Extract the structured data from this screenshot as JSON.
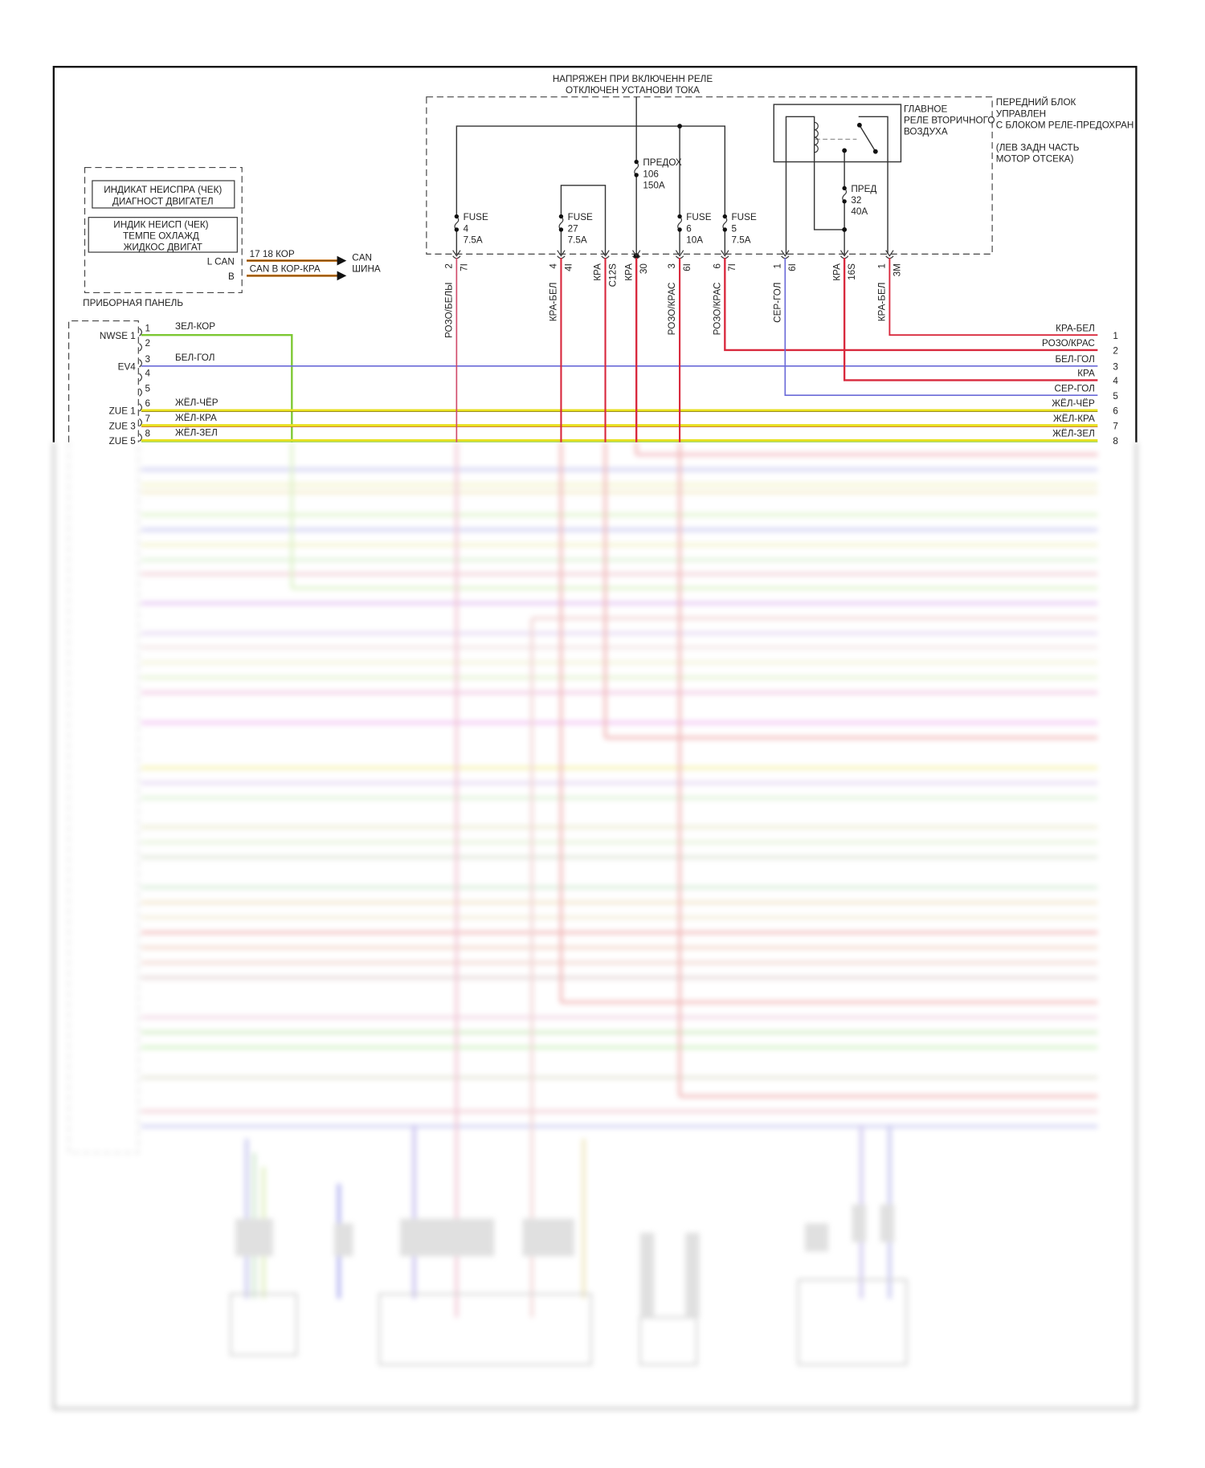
{
  "header": {
    "line1": "НАПРЯЖЕН ПРИ ВКЛЮЧЕНН РЕЛЕ",
    "line2": "ОТКЛЮЧЕН УСТАНОВИ ТОКА"
  },
  "fuse_block": {
    "label": [
      "ПЕРЕДНИЙ БЛОК",
      "УПРАВЛЕН",
      "С БЛОКОМ РЕЛЕ-ПРЕДОХРАН",
      "(ЛЕВ ЗАДН ЧАСТЬ",
      "МОТОР ОТСЕКА)"
    ],
    "relay_label": [
      "ГЛАВНОЕ",
      "РЕЛЕ ВТОРИЧНОГО",
      "ВОЗДУХА"
    ],
    "fuses": [
      {
        "name": "FUSE",
        "num": "4",
        "rating": "7.5A"
      },
      {
        "name": "FUSE",
        "num": "27",
        "rating": "7.5A"
      },
      {
        "name": "ПРЕДОХ",
        "num": "106",
        "rating": "150A"
      },
      {
        "name": "FUSE",
        "num": "6",
        "rating": "10A"
      },
      {
        "name": "FUSE",
        "num": "5",
        "rating": "7.5A"
      },
      {
        "name": "ПРЕД",
        "num": "32",
        "rating": "40A"
      }
    ],
    "pins": [
      {
        "a": "2",
        "b": "7I",
        "wire": "РОЗО/БЕЛЫ"
      },
      {
        "a": "4",
        "b": "4I",
        "wire": "КРА-БЕЛ"
      },
      {
        "a": "КРА",
        "b": "C12S",
        "wire": ""
      },
      {
        "a": "КРА",
        "b": "30",
        "wire": ""
      },
      {
        "a": "3",
        "b": "6I",
        "wire": "РОЗО/КРАС"
      },
      {
        "a": "6",
        "b": "7I",
        "wire": "РОЗО/КРАС"
      },
      {
        "a": "1",
        "b": "6I",
        "wire": "СЕР-ГОЛ"
      },
      {
        "a": "КРА",
        "b": "16S",
        "wire": ""
      },
      {
        "a": "1",
        "b": "3M",
        "wire": "КРА-БЕЛ"
      }
    ]
  },
  "instrument_panel": {
    "title": "ПРИБОРНАЯ ПАНЕЛЬ",
    "box1": [
      "ИНДИКАТ НЕИСПРА (ЧЕК)",
      "ДИАГНОСТ ДВИГАТЕЛ"
    ],
    "box2": [
      "ИНДИК НЕИСП (ЧЕК)",
      "ТЕМПЕ ОХЛАЖД",
      "ЖИДКОС ДВИГАТ"
    ],
    "lcan": "L CAN",
    "b": "B",
    "wire1": "17 18   КОР",
    "wire2": "CAN В КОР-КРА",
    "bus": [
      "CAN",
      "ШИНА"
    ]
  },
  "left_connector": {
    "pin_labels": [
      "NWSE 1",
      "EV4",
      "ZUE 1",
      "ZUE 3",
      "ZUE 5"
    ],
    "pin_numbers": [
      "1",
      "2",
      "3",
      "4",
      "5",
      "6",
      "7",
      "8"
    ],
    "wires": [
      "ЗЕЛ-КОР",
      "БЕЛ-ГОЛ",
      "ЖЁЛ-ЧЁР",
      "ЖЁЛ-КРА",
      "ЖЁЛ-ЗЕЛ"
    ]
  },
  "right_connector": {
    "wires": [
      "КРА-БЕЛ",
      "РОЗО/КРАС",
      "БЕЛ-ГОЛ",
      "КРА",
      "СЕР-ГОЛ",
      "ЖЁЛ-ЧЁР",
      "ЖЁЛ-КРА",
      "ЖЁЛ-ЗЕЛ"
    ],
    "pin_numbers": [
      "1",
      "2",
      "3",
      "4",
      "5",
      "6",
      "7",
      "8"
    ]
  },
  "colors": {
    "red": "#d8283c",
    "pink": "#d04a6a",
    "blue": "#6a6ad8",
    "green": "#7cc832",
    "yellow": "#e8e020",
    "orange": "#c8761e"
  }
}
